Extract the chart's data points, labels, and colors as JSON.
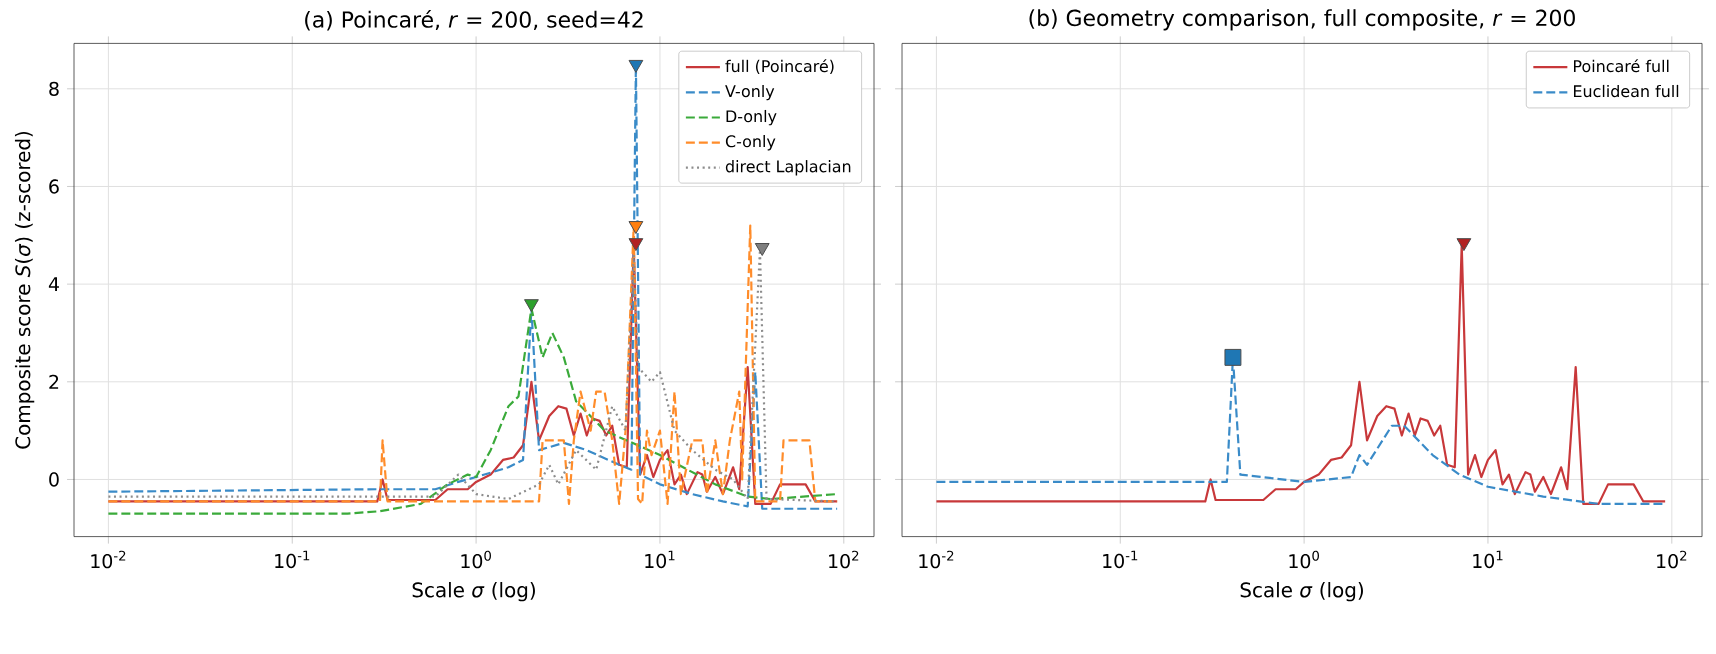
{
  "chart_data": [
    {
      "type": "line",
      "title": "(a) Poincaré, *r* = 200, seed=42",
      "xlabel": "Scale *σ* (log)",
      "ylabel": "Composite score *S*(*σ*) (z-scored)",
      "log": "x",
      "grid": true,
      "legend": "top right",
      "xlim": [
        0.0065,
        146
      ],
      "ylim": [
        -1.17,
        8.93
      ],
      "xticks": [
        {
          "value": 0.01,
          "label": "10$^{-2}$"
        },
        {
          "value": 0.1,
          "label": "10$^{-1}$"
        },
        {
          "value": 1,
          "label": "10$^{0}$"
        },
        {
          "value": 10,
          "label": "10$^{1}$"
        },
        {
          "value": 100,
          "label": "10$^{2}$"
        }
      ],
      "yticks": [
        0,
        2,
        4,
        6,
        8
      ],
      "series": [
        {
          "name": "full (Poincaré)",
          "color": "#c8383a",
          "line_style": "solid",
          "x": [
            0.01,
            0.29,
            0.31,
            0.33,
            0.6,
            0.7,
            0.9,
            1.0,
            1.2,
            1.4,
            1.6,
            1.8,
            2.0,
            2.2,
            2.5,
            2.8,
            3.1,
            3.4,
            3.7,
            4.0,
            4.3,
            4.7,
            5.1,
            5.5,
            6.0,
            6.6,
            7.2,
            7.8,
            8.5,
            9.2,
            10,
            11,
            12,
            13,
            14,
            16,
            17,
            18,
            20,
            22,
            25,
            27,
            30,
            33,
            36,
            40,
            45,
            55,
            62,
            70,
            92
          ],
          "values": [
            -0.45,
            -0.45,
            0,
            -0.42,
            -0.42,
            -0.2,
            -0.2,
            -0.05,
            0.1,
            0.4,
            0.45,
            0.7,
            2.0,
            0.8,
            1.3,
            1.5,
            1.45,
            0.9,
            1.35,
            0.9,
            1.25,
            1.2,
            0.9,
            1.1,
            0.3,
            0.25,
            4.8,
            0.1,
            0.5,
            0.05,
            0.4,
            0.6,
            -0.1,
            0.1,
            -0.3,
            0.15,
            0.1,
            -0.25,
            0.05,
            -0.3,
            0.25,
            -0.2,
            2.3,
            -0.5,
            -0.5,
            -0.5,
            -0.1,
            -0.1,
            -0.1,
            -0.45,
            -0.45
          ]
        },
        {
          "name": "V-only",
          "color": "#3a8bc8",
          "line_style": "dashed",
          "x": [
            0.01,
            0.3,
            0.6,
            0.8,
            1.0,
            1.5,
            1.8,
            2.0,
            2.2,
            3.0,
            4,
            6,
            7.0,
            7.4,
            7.8,
            10,
            15,
            22,
            30,
            33,
            36,
            92
          ],
          "values": [
            -0.25,
            -0.2,
            -0.2,
            -0.05,
            0.05,
            0.25,
            0.4,
            3.5,
            0.6,
            0.75,
            0.6,
            0.3,
            0.2,
            8.5,
            0.1,
            -0.1,
            -0.3,
            -0.45,
            -0.55,
            2.2,
            -0.6,
            -0.6
          ]
        },
        {
          "name": "D-only",
          "color": "#3aaa3a",
          "line_style": "dashed",
          "x": [
            0.01,
            0.2,
            0.3,
            0.5,
            0.7,
            0.9,
            1.0,
            1.2,
            1.5,
            1.7,
            2.0,
            2.3,
            2.6,
            3.0,
            3.5,
            5,
            10,
            20,
            30,
            40,
            92
          ],
          "values": [
            -0.7,
            -0.7,
            -0.65,
            -0.5,
            -0.1,
            0.1,
            0.05,
            0.6,
            1.5,
            1.7,
            3.5,
            2.5,
            3.0,
            2.5,
            1.6,
            1.0,
            0.5,
            -0.1,
            -0.35,
            -0.4,
            -0.3
          ]
        },
        {
          "name": "C-only",
          "color": "#ff8c2a",
          "line_style": "dashed",
          "x": [
            0.01,
            0.3,
            0.31,
            0.33,
            2.2,
            2.3,
            3.0,
            3.2,
            3.4,
            3.7,
            4.2,
            4.5,
            5,
            5.5,
            6,
            6.5,
            7.2,
            7.6,
            8,
            8.5,
            9,
            10,
            11,
            12,
            13,
            15,
            17,
            18,
            20,
            22,
            24,
            27,
            28,
            31,
            33,
            45,
            47,
            65,
            70,
            92
          ],
          "values": [
            -0.45,
            -0.45,
            0.8,
            -0.45,
            -0.45,
            0.8,
            0.8,
            -0.5,
            0.8,
            1.8,
            1.0,
            1.8,
            1.8,
            0.8,
            -0.5,
            1.0,
            5.2,
            -0.4,
            -0.5,
            1.0,
            0.5,
            1.0,
            -0.5,
            1.8,
            -0.3,
            0.8,
            0.8,
            -0.3,
            0.8,
            -0.3,
            0.8,
            1.8,
            0,
            5.2,
            -0.45,
            -0.45,
            0.8,
            0.8,
            -0.45,
            -0.45
          ]
        },
        {
          "name": "direct Laplacian",
          "color": "#8c8c8c",
          "line_style": "dotted",
          "x": [
            0.01,
            0.6,
            0.8,
            1.0,
            1.5,
            2.2,
            2.5,
            2.8,
            3.5,
            4.5,
            5.5,
            6.5,
            7.2,
            7.6,
            9,
            10,
            12,
            15,
            20,
            25,
            30,
            35,
            38,
            92
          ],
          "values": [
            -0.35,
            -0.35,
            0.1,
            -0.3,
            -0.4,
            -0.1,
            0.3,
            -0.1,
            0.6,
            0.2,
            1.5,
            1.0,
            4.6,
            2.3,
            2.0,
            2.2,
            1.0,
            0.6,
            0.2,
            0,
            -0.4,
            4.7,
            -0.4,
            -0.45
          ]
        },
        {
          "type": "scatter",
          "marker": "triangle",
          "color": "#1f77b4",
          "x": [
            7.4
          ],
          "values": [
            8.5
          ]
        },
        {
          "type": "scatter",
          "marker": "triangle",
          "color": "#ff7f0e",
          "x": [
            7.4
          ],
          "values": [
            5.2
          ]
        },
        {
          "type": "scatter",
          "marker": "triangle",
          "color": "#b22222",
          "x": [
            7.4
          ],
          "values": [
            4.85
          ]
        },
        {
          "type": "scatter",
          "marker": "triangle",
          "color": "#7f7f7f",
          "x": [
            36
          ],
          "values": [
            4.75
          ]
        },
        {
          "type": "scatter",
          "marker": "triangle",
          "color": "#2ca02c",
          "x": [
            2.0
          ],
          "values": [
            3.6
          ]
        }
      ]
    },
    {
      "type": "line",
      "title": "(b) Geometry comparison, full composite, *r* = 200",
      "xlabel": "Scale *σ* (log)",
      "log": "x",
      "grid": true,
      "legend": "top right",
      "tick_labels": "x",
      "xlim": [
        0.0065,
        146
      ],
      "ylim": [
        -1.17,
        8.93
      ],
      "xticks": [
        {
          "value": 0.01,
          "label": "10$^{-2}$"
        },
        {
          "value": 0.1,
          "label": "10$^{-1}$"
        },
        {
          "value": 1,
          "label": "10$^{0}$"
        },
        {
          "value": 10,
          "label": "10$^{1}$"
        },
        {
          "value": 100,
          "label": "10$^{2}$"
        }
      ],
      "yticks": [
        0,
        2,
        4,
        6,
        8
      ],
      "series": [
        {
          "name": "Poincaré full",
          "color": "#c8383a",
          "line_style": "solid",
          "x": [
            0.01,
            0.29,
            0.31,
            0.33,
            0.6,
            0.7,
            0.9,
            1.0,
            1.2,
            1.4,
            1.6,
            1.8,
            2.0,
            2.2,
            2.5,
            2.8,
            3.1,
            3.4,
            3.7,
            4.0,
            4.3,
            4.7,
            5.1,
            5.5,
            6.0,
            6.6,
            7.2,
            7.8,
            8.5,
            9.2,
            10,
            11,
            12,
            13,
            14,
            16,
            17,
            18,
            20,
            22,
            25,
            27,
            30,
            33,
            36,
            40,
            45,
            55,
            62,
            70,
            92
          ],
          "values": [
            -0.45,
            -0.45,
            0,
            -0.42,
            -0.42,
            -0.2,
            -0.2,
            -0.05,
            0.1,
            0.4,
            0.45,
            0.7,
            2.0,
            0.8,
            1.3,
            1.5,
            1.45,
            0.9,
            1.35,
            0.9,
            1.25,
            1.2,
            0.9,
            1.1,
            0.3,
            0.25,
            4.8,
            0.1,
            0.5,
            0.05,
            0.4,
            0.6,
            -0.1,
            0.1,
            -0.3,
            0.15,
            0.1,
            -0.25,
            0.05,
            -0.3,
            0.25,
            -0.2,
            2.3,
            -0.5,
            -0.5,
            -0.5,
            -0.1,
            -0.1,
            -0.1,
            -0.45,
            -0.45
          ]
        },
        {
          "name": "Euclidean full",
          "color": "#3a8bc8",
          "line_style": "dashed",
          "x": [
            0.01,
            0.38,
            0.41,
            0.45,
            1.0,
            1.8,
            2.0,
            2.2,
            3.0,
            3.5,
            5,
            7,
            10,
            20,
            40,
            92
          ],
          "values": [
            -0.05,
            -0.05,
            2.5,
            0.1,
            -0.05,
            0.05,
            0.5,
            0.3,
            1.1,
            1.1,
            0.5,
            0.1,
            -0.15,
            -0.35,
            -0.5,
            -0.5
          ]
        },
        {
          "type": "scatter",
          "marker": "square",
          "color": "#1f77b4",
          "x": [
            0.41
          ],
          "values": [
            2.5
          ]
        },
        {
          "type": "scatter",
          "marker": "triangle",
          "color": "#b22222",
          "x": [
            7.4
          ],
          "values": [
            4.85
          ]
        }
      ]
    }
  ]
}
